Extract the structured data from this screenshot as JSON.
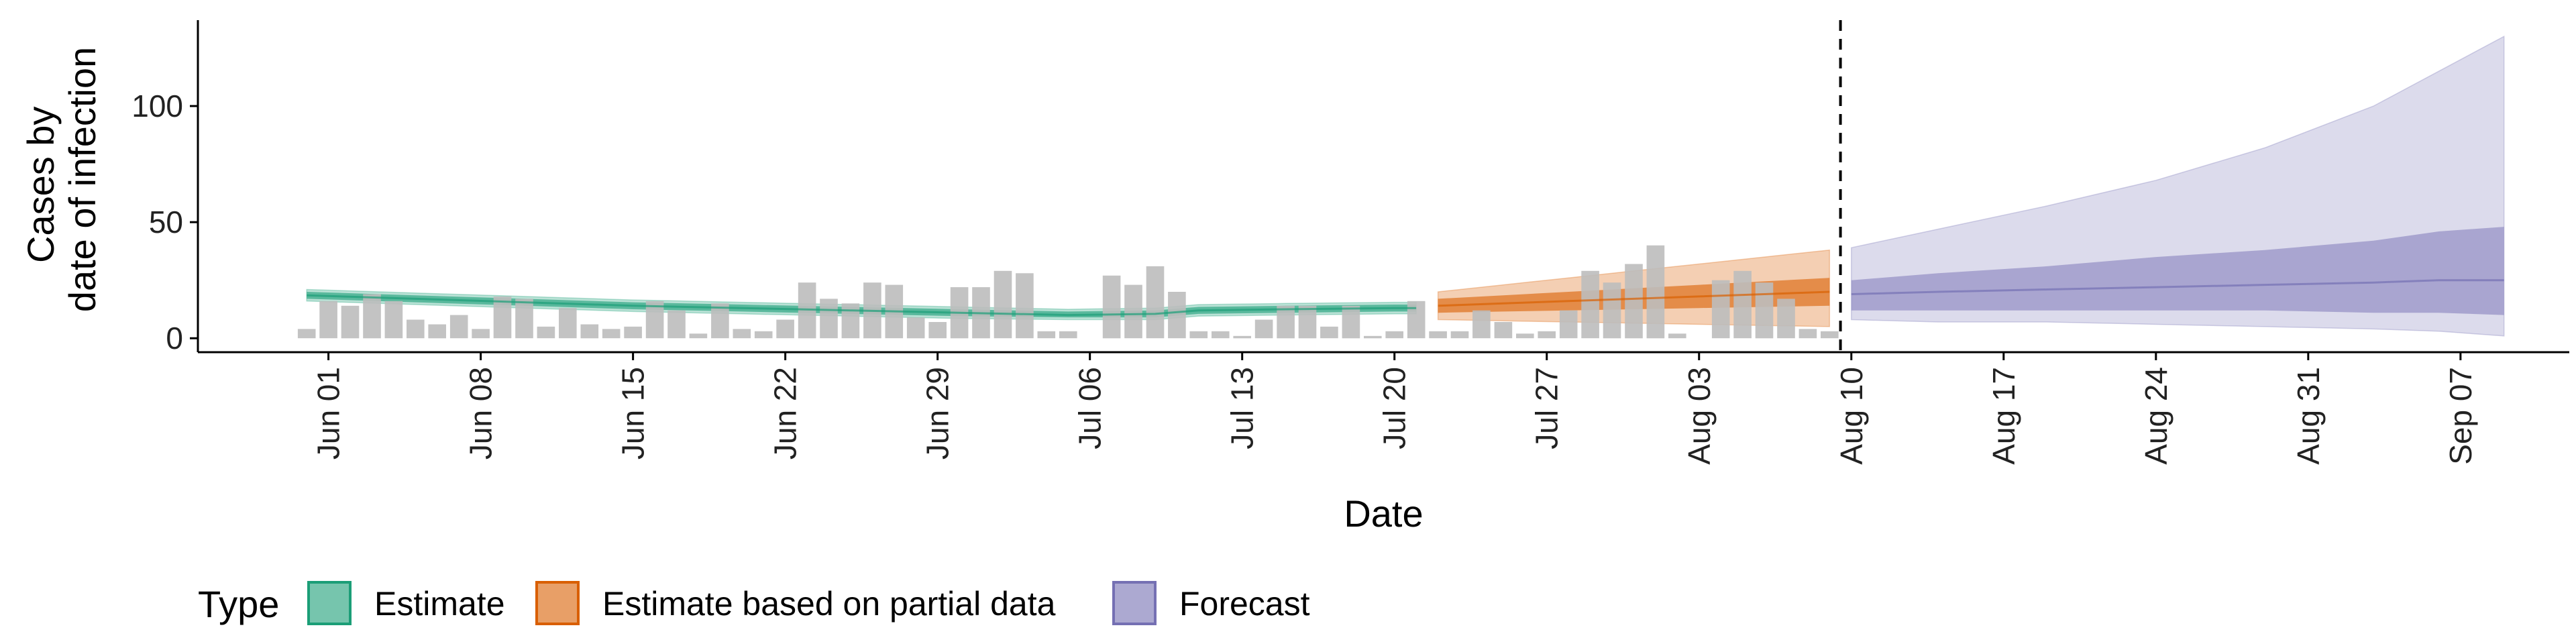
{
  "chart_data": {
    "type": "area",
    "xlabel": "Date",
    "ylabel_lines": [
      "Cases by",
      "date of infection"
    ],
    "ylim": [
      -6,
      137
    ],
    "y_ticks": [
      0,
      50,
      100
    ],
    "x_tick_labels": [
      "Jun 01",
      "Jun 08",
      "Jun 15",
      "Jun 22",
      "Jun 29",
      "Jul 06",
      "Jul 13",
      "Jul 20",
      "Jul 27",
      "Aug 03",
      "Aug 10",
      "Aug 17",
      "Aug 24",
      "Aug 31",
      "Sep 07"
    ],
    "x_start_date": "2020-05-26",
    "x_end_date": "2020-09-12",
    "x_range_days": [
      0,
      109
    ],
    "tick_days": [
      6,
      13,
      20,
      27,
      34,
      41,
      48,
      55,
      62,
      69,
      76,
      83,
      90,
      97,
      104
    ],
    "forecast_line_day": 75.5,
    "grid": false,
    "legend_position": "bottom",
    "legend_title": "Type",
    "legend": [
      {
        "label": "Estimate",
        "color": "#1b9e77"
      },
      {
        "label": "Estimate based on partial data",
        "color": "#d95f02"
      },
      {
        "label": "Forecast",
        "color": "#7570b3"
      }
    ],
    "bars": {
      "start_day": 5,
      "color": "#bdbdbd",
      "values": [
        4,
        16,
        14,
        19,
        16,
        8,
        6,
        10,
        4,
        18,
        17,
        5,
        13,
        6,
        4,
        5,
        16,
        12,
        2,
        15,
        4,
        3,
        8,
        24,
        17,
        15,
        24,
        23,
        9,
        7,
        22,
        22,
        29,
        28,
        3,
        3,
        0,
        27,
        23,
        31,
        20,
        3,
        3,
        1,
        8,
        14,
        14,
        5,
        14,
        1,
        3,
        16,
        3,
        3,
        12,
        7,
        2,
        3,
        12,
        29,
        24,
        32,
        40,
        2,
        0,
        25,
        29,
        24,
        17,
        4,
        3
      ]
    },
    "series": [
      {
        "name": "Estimate",
        "color": "#1b9e77",
        "days": [
          5,
          10,
          15,
          20,
          25,
          30,
          35,
          40,
          44,
          46,
          50,
          55,
          56
        ],
        "median": [
          18.5,
          17,
          15.5,
          14,
          13,
          12,
          11,
          10,
          10.5,
          12,
          12.5,
          13,
          13
        ],
        "inner_low": [
          17,
          15.5,
          14,
          12.5,
          11.5,
          10.5,
          9.5,
          9,
          9,
          10.5,
          11,
          11.5,
          11.5
        ],
        "inner_high": [
          20,
          18.5,
          17,
          15.5,
          14.5,
          13.5,
          12.5,
          11.5,
          12,
          13.5,
          14,
          14.5,
          14.5
        ],
        "outer_low": [
          16,
          14.5,
          13,
          11.5,
          10.5,
          9.5,
          8.5,
          8,
          8,
          9.5,
          10,
          10.5,
          10.5
        ],
        "outer_high": [
          21,
          19.5,
          18,
          16.5,
          15.5,
          14.5,
          13.5,
          12.5,
          13,
          14.5,
          15,
          15.5,
          15.5
        ]
      },
      {
        "name": "Estimate based on partial data",
        "color": "#d95f02",
        "days": [
          57,
          60,
          63,
          66,
          69,
          72,
          75
        ],
        "median": [
          14,
          15,
          16,
          17,
          18,
          19,
          20
        ],
        "inner_low": [
          11,
          11.5,
          12,
          12.5,
          13,
          13.5,
          14
        ],
        "inner_high": [
          17,
          18.5,
          20,
          21.5,
          23,
          24.5,
          26
        ],
        "outer_low": [
          8,
          7.5,
          7,
          6.5,
          6,
          5.5,
          5
        ],
        "outer_high": [
          20,
          23,
          26,
          29,
          32,
          35,
          38
        ]
      },
      {
        "name": "Forecast",
        "color": "#7570b3",
        "days": [
          76,
          80,
          85,
          90,
          95,
          100,
          103,
          106
        ],
        "median": [
          19,
          20,
          21,
          22,
          23,
          24,
          25,
          25
        ],
        "inner_low": [
          12,
          12,
          12,
          12,
          12,
          11,
          11,
          10
        ],
        "inner_high": [
          25,
          28,
          31,
          35,
          38,
          42,
          46,
          48
        ],
        "outer_low": [
          8,
          7,
          7,
          6,
          5,
          4,
          3,
          1
        ],
        "outer_high": [
          39,
          47,
          57,
          68,
          82,
          100,
          115,
          130
        ]
      }
    ]
  }
}
